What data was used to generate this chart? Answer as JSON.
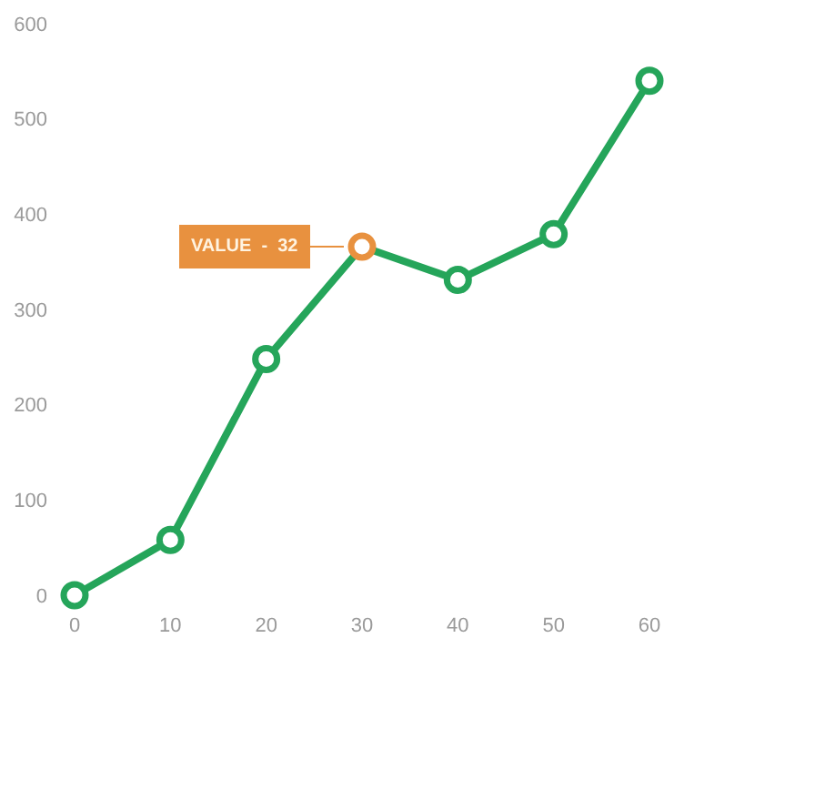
{
  "chart_data": {
    "type": "line",
    "x": [
      0,
      10,
      20,
      30,
      40,
      50,
      60
    ],
    "series": [
      {
        "color": "#25a55a",
        "colors": [
          "#25a55a",
          "#25a55a",
          "#25a55a",
          "#e8913f",
          "#25a55a",
          "#25a55a",
          "#25a55a"
        ],
        "values": [
          0,
          58,
          248,
          366,
          331,
          379,
          540
        ]
      }
    ],
    "xlim": [
      0,
      60
    ],
    "xticks": [
      0,
      10,
      20,
      30,
      40,
      50,
      60
    ],
    "ylim": [
      0,
      600
    ],
    "yticks": [
      0,
      100,
      200,
      300,
      400,
      500,
      600
    ],
    "marker": "circle",
    "line_style": "solid",
    "annotations": [
      {
        "text": "VALUE  -  32",
        "x": 30,
        "y": 366
      }
    ]
  }
}
